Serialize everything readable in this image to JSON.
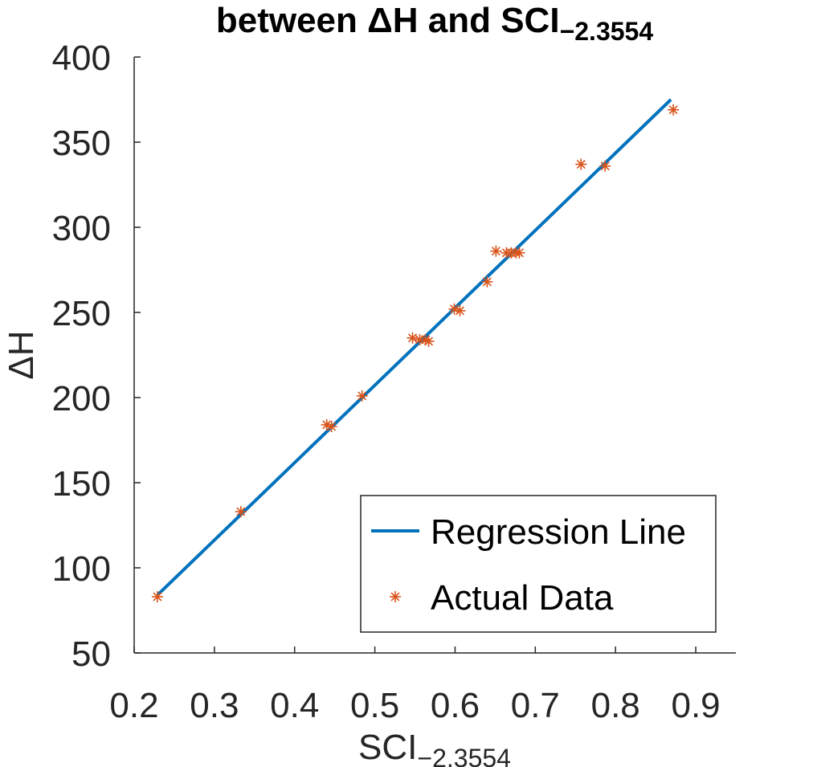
{
  "chart_data": {
    "type": "scatter",
    "title_main": "between ΔH and SCI",
    "title_sub": "−2.3554",
    "xlabel_main": "SCI",
    "xlabel_sub": "−2.3554",
    "ylabel": "ΔH",
    "xlim": [
      0.2,
      0.95
    ],
    "ylim": [
      50,
      400
    ],
    "x_ticks": [
      0.2,
      0.3,
      0.4,
      0.5,
      0.6,
      0.7,
      0.8,
      0.9
    ],
    "x_tick_labels": [
      "0.2",
      "0.3",
      "0.4",
      "0.5",
      "0.6",
      "0.7",
      "0.8",
      "0.9"
    ],
    "y_ticks": [
      50,
      100,
      150,
      200,
      250,
      300,
      350,
      400
    ],
    "y_tick_labels": [
      "50",
      "100",
      "150",
      "200",
      "250",
      "300",
      "350",
      "400"
    ],
    "grid": false,
    "legend_position": "bottom-right",
    "series": [
      {
        "name": "Regression Line",
        "kind": "line",
        "color": "#0072BD",
        "x": [
          0.229,
          0.869
        ],
        "y": [
          84,
          375
        ]
      },
      {
        "name": "Actual Data",
        "kind": "scatter",
        "marker": "asterisk",
        "color": "#D95319",
        "x": [
          0.229,
          0.333,
          0.44,
          0.446,
          0.484,
          0.547,
          0.556,
          0.563,
          0.567,
          0.599,
          0.606,
          0.64,
          0.651,
          0.664,
          0.67,
          0.676,
          0.68,
          0.757,
          0.787,
          0.872
        ],
        "y": [
          83,
          133,
          184,
          183,
          201,
          235,
          234,
          234,
          233,
          252,
          251,
          268,
          286,
          285,
          285,
          285,
          285,
          337,
          336,
          369
        ]
      }
    ]
  }
}
